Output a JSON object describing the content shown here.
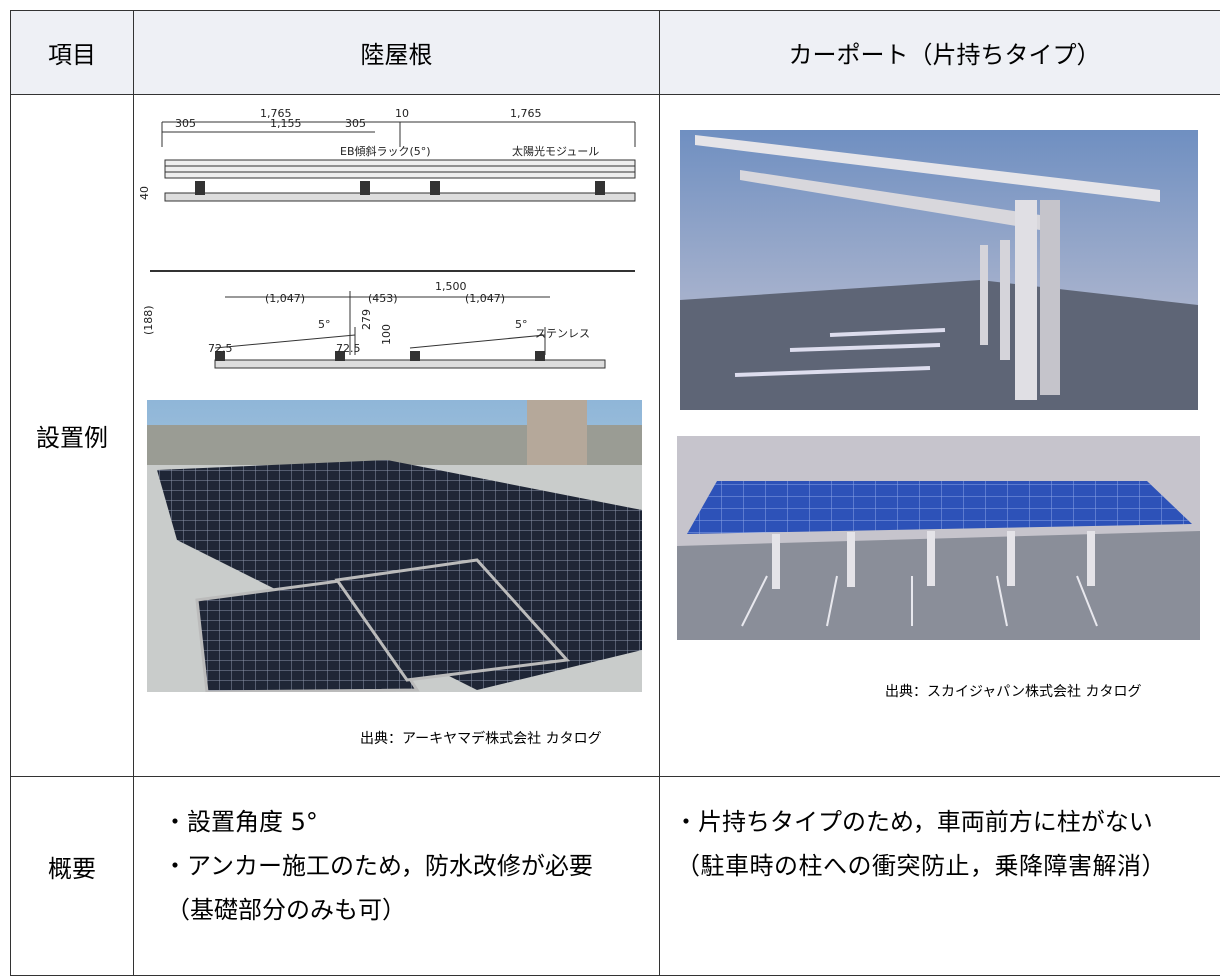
{
  "header": {
    "item": "項目",
    "flat_roof": "陸屋根",
    "carport": "カーポート（片持ちタイプ）"
  },
  "rows": [
    {
      "label": "設置例",
      "flat_roof": {
        "diagram_labels": [
          "1,765",
          "10",
          "1,765",
          "305",
          "1,155",
          "305",
          "EB傾斜ラック(5°)",
          "太陽光モジュール",
          "40",
          "1,500",
          "(1,047)",
          "(453)",
          "(1,047)",
          "5°",
          "5°",
          "ステンレス",
          "(188)",
          "72.5",
          "72.5",
          "279",
          "100"
        ],
        "source": "出典：アーキヤマデ株式会社 カタログ"
      },
      "carport": {
        "source": "出典：スカイジャパン株式会社 カタログ"
      }
    },
    {
      "label": "概要",
      "flat_roof": {
        "lines": [
          "・設置角度 5°",
          "・アンカー施工のため，防水改修が必要",
          "（基礎部分のみも可）"
        ]
      },
      "carport": {
        "lines": [
          "・片持ちタイプのため，車両前方に柱がない",
          "（駐車時の柱への衝突防止，乗降障害解消）"
        ]
      }
    }
  ]
}
